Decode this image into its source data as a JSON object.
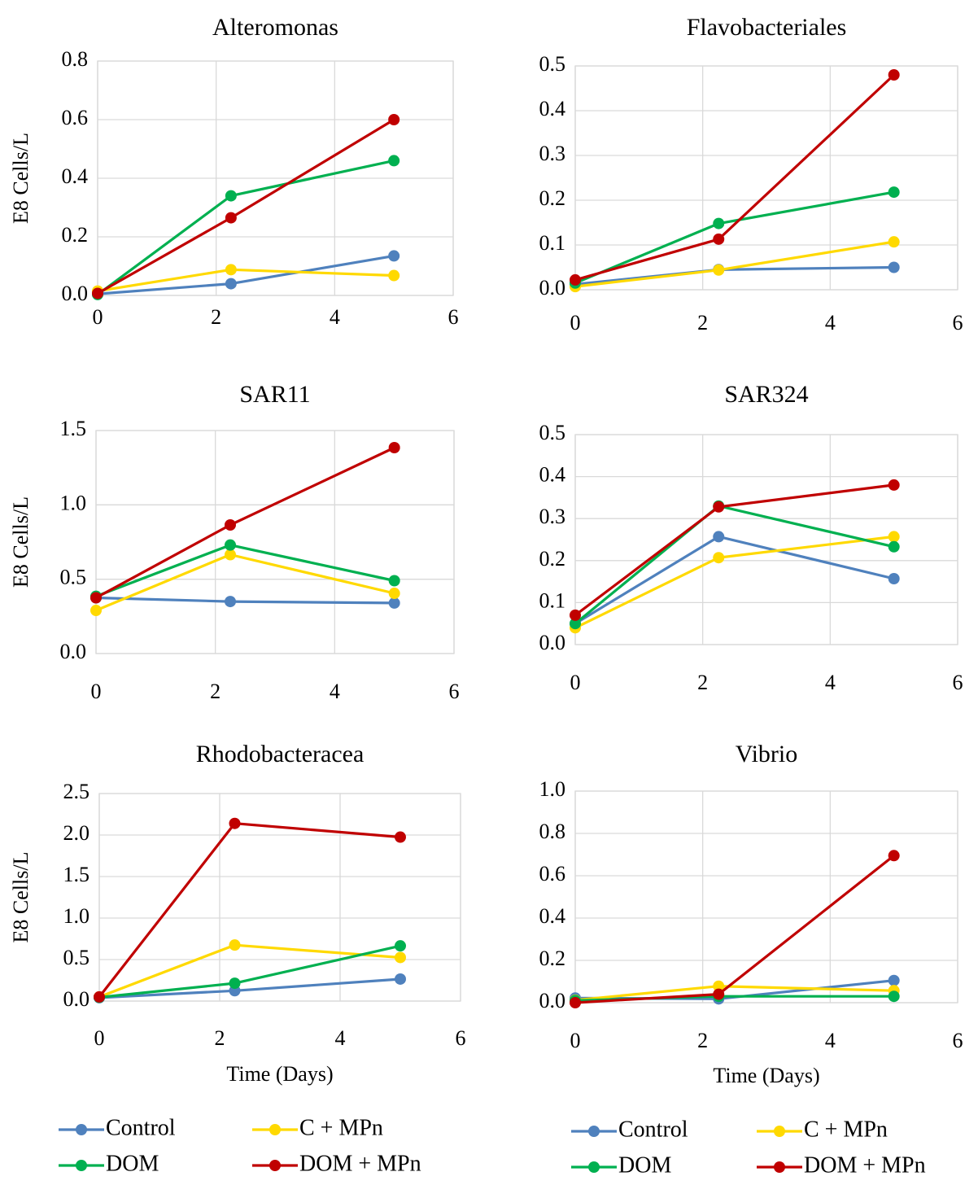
{
  "chart_data": [
    {
      "type": "line",
      "title": "Alteromonas",
      "xlabel": "",
      "ylabel": "E8 Cells/L",
      "xlim": [
        0,
        6
      ],
      "ylim": [
        0,
        0.8
      ],
      "xticks": [
        "0",
        "2",
        "4",
        "6"
      ],
      "yticks": [
        "0.0",
        "0.2",
        "0.4",
        "0.6",
        "0.8"
      ],
      "grid": "vertical-and-horizontal",
      "series": [
        {
          "name": "Control",
          "color": "#4f81bd",
          "x": [
            0,
            2.25,
            5
          ],
          "y": [
            0.005,
            0.04,
            0.135
          ]
        },
        {
          "name": "C + MPn",
          "color": "#ffd900",
          "x": [
            0,
            2.25,
            5
          ],
          "y": [
            0.015,
            0.088,
            0.068
          ]
        },
        {
          "name": "DOM",
          "color": "#00b050",
          "x": [
            0,
            2.25,
            5
          ],
          "y": [
            0.003,
            0.34,
            0.46
          ]
        },
        {
          "name": "DOM + MPn",
          "color": "#c00000",
          "x": [
            0,
            2.25,
            5
          ],
          "y": [
            0.007,
            0.265,
            0.6
          ]
        }
      ]
    },
    {
      "type": "line",
      "title": "Flavobacteriales",
      "xlabel": "",
      "ylabel": "",
      "xlim": [
        0,
        6
      ],
      "ylim": [
        0,
        0.5
      ],
      "xticks": [
        "0",
        "2",
        "4",
        "6"
      ],
      "yticks": [
        "0.0",
        "0.1",
        "0.2",
        "0.3",
        "0.4",
        "0.5"
      ],
      "grid": "vertical-and-horizontal",
      "series": [
        {
          "name": "Control",
          "color": "#4f81bd",
          "x": [
            0,
            2.25,
            5
          ],
          "y": [
            0.012,
            0.045,
            0.05
          ]
        },
        {
          "name": "C + MPn",
          "color": "#ffd900",
          "x": [
            0,
            2.25,
            5
          ],
          "y": [
            0.007,
            0.044,
            0.107
          ]
        },
        {
          "name": "DOM",
          "color": "#00b050",
          "x": [
            0,
            2.25,
            5
          ],
          "y": [
            0.015,
            0.148,
            0.218
          ]
        },
        {
          "name": "DOM + MPn",
          "color": "#c00000",
          "x": [
            0,
            2.25,
            5
          ],
          "y": [
            0.022,
            0.113,
            0.48
          ]
        }
      ]
    },
    {
      "type": "line",
      "title": "SAR11",
      "xlabel": "",
      "ylabel": "E8 Cells/L",
      "xlim": [
        0,
        6
      ],
      "ylim": [
        0,
        1.5
      ],
      "xticks": [
        "0",
        "2",
        "4",
        "6"
      ],
      "yticks": [
        "0.0",
        "0.5",
        "1.0",
        "1.5"
      ],
      "grid": "vertical-and-horizontal",
      "series": [
        {
          "name": "Control",
          "color": "#4f81bd",
          "x": [
            0,
            2.25,
            5
          ],
          "y": [
            0.375,
            0.35,
            0.34
          ]
        },
        {
          "name": "C + MPn",
          "color": "#ffd900",
          "x": [
            0,
            2.25,
            5
          ],
          "y": [
            0.29,
            0.665,
            0.405
          ]
        },
        {
          "name": "DOM",
          "color": "#00b050",
          "x": [
            0,
            2.25,
            5
          ],
          "y": [
            0.385,
            0.73,
            0.49
          ]
        },
        {
          "name": "DOM + MPn",
          "color": "#c00000",
          "x": [
            0,
            2.25,
            5
          ],
          "y": [
            0.375,
            0.865,
            1.385
          ]
        }
      ]
    },
    {
      "type": "line",
      "title": "SAR324",
      "xlabel": "",
      "ylabel": "",
      "xlim": [
        0,
        6
      ],
      "ylim": [
        0,
        0.5
      ],
      "xticks": [
        "0",
        "2",
        "4",
        "6"
      ],
      "yticks": [
        "0.0",
        "0.1",
        "0.2",
        "0.3",
        "0.4",
        "0.5"
      ],
      "grid": "vertical-and-horizontal",
      "series": [
        {
          "name": "Control",
          "color": "#4f81bd",
          "x": [
            0,
            2.25,
            5
          ],
          "y": [
            0.05,
            0.257,
            0.157
          ]
        },
        {
          "name": "C + MPn",
          "color": "#ffd900",
          "x": [
            0,
            2.25,
            5
          ],
          "y": [
            0.04,
            0.207,
            0.257
          ]
        },
        {
          "name": "DOM",
          "color": "#00b050",
          "x": [
            0,
            2.25,
            5
          ],
          "y": [
            0.05,
            0.33,
            0.233
          ]
        },
        {
          "name": "DOM + MPn",
          "color": "#c00000",
          "x": [
            0,
            2.25,
            5
          ],
          "y": [
            0.07,
            0.328,
            0.38
          ]
        }
      ]
    },
    {
      "type": "line",
      "title": "Rhodobacteracea",
      "xlabel": "Time (Days)",
      "ylabel": "E8 Cells/L",
      "xlim": [
        0,
        6
      ],
      "ylim": [
        0,
        2.5
      ],
      "xticks": [
        "0",
        "2",
        "4",
        "6"
      ],
      "yticks": [
        "0.0",
        "0.5",
        "1.0",
        "1.5",
        "2.0",
        "2.5"
      ],
      "grid": "vertical-and-horizontal",
      "series": [
        {
          "name": "Control",
          "color": "#4f81bd",
          "x": [
            0,
            2.25,
            5
          ],
          "y": [
            0.04,
            0.125,
            0.265
          ]
        },
        {
          "name": "C + MPn",
          "color": "#ffd900",
          "x": [
            0,
            2.25,
            5
          ],
          "y": [
            0.05,
            0.675,
            0.525
          ]
        },
        {
          "name": "DOM",
          "color": "#00b050",
          "x": [
            0,
            2.25,
            5
          ],
          "y": [
            0.045,
            0.215,
            0.665
          ]
        },
        {
          "name": "DOM + MPn",
          "color": "#c00000",
          "x": [
            0,
            2.25,
            5
          ],
          "y": [
            0.05,
            2.14,
            1.975
          ]
        }
      ]
    },
    {
      "type": "line",
      "title": "Vibrio",
      "xlabel": "Time (Days)",
      "ylabel": "",
      "xlim": [
        0,
        6
      ],
      "ylim": [
        0,
        1.0
      ],
      "xticks": [
        "0",
        "2",
        "4",
        "6"
      ],
      "yticks": [
        "0.0",
        "0.2",
        "0.4",
        "0.6",
        "0.8",
        "1.0"
      ],
      "grid": "vertical-and-horizontal",
      "series": [
        {
          "name": "Control",
          "color": "#4f81bd",
          "x": [
            0,
            2.25,
            5
          ],
          "y": [
            0.022,
            0.018,
            0.105
          ]
        },
        {
          "name": "C + MPn",
          "color": "#ffd900",
          "x": [
            0,
            2.25,
            5
          ],
          "y": [
            0.012,
            0.078,
            0.057
          ]
        },
        {
          "name": "DOM",
          "color": "#00b050",
          "x": [
            0,
            2.25,
            5
          ],
          "y": [
            0.01,
            0.03,
            0.03
          ]
        },
        {
          "name": "DOM + MPn",
          "color": "#c00000",
          "x": [
            0,
            2.25,
            5
          ],
          "y": [
            0.0,
            0.04,
            0.695
          ]
        }
      ]
    }
  ],
  "legends": [
    {
      "placement": "bottom-left",
      "entries": [
        {
          "label": "Control",
          "color": "#4f81bd"
        },
        {
          "label": "C + MPn",
          "color": "#ffd900"
        },
        {
          "label": "DOM",
          "color": "#00b050"
        },
        {
          "label": "DOM + MPn",
          "color": "#c00000"
        }
      ]
    },
    {
      "placement": "bottom-right",
      "entries": [
        {
          "label": "Control",
          "color": "#4f81bd"
        },
        {
          "label": "C + MPn",
          "color": "#ffd900"
        },
        {
          "label": "DOM",
          "color": "#00b050"
        },
        {
          "label": "DOM + MPn",
          "color": "#c00000"
        }
      ]
    }
  ]
}
